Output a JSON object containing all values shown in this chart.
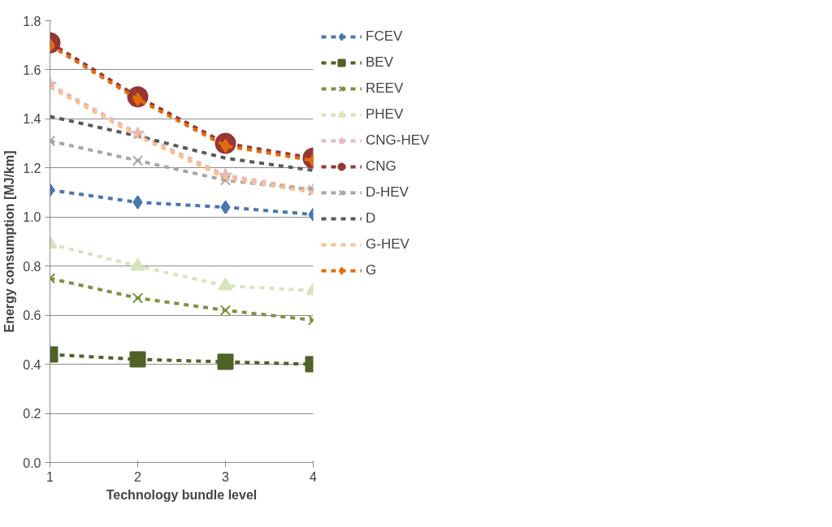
{
  "chart_data": {
    "type": "line",
    "xlabel": "Technology bundle level",
    "ylabel": "Energy consumption [MJ/km]",
    "x": [
      1,
      2,
      3,
      4
    ],
    "xlim": [
      1,
      4
    ],
    "xticks": [
      1,
      2,
      3,
      4
    ],
    "ylim": [
      0,
      1.8
    ],
    "yticks": [
      {
        "value": 0,
        "label": "0.0"
      },
      {
        "value": 0.2,
        "label": "0.2"
      },
      {
        "value": 0.4,
        "label": "0.4"
      },
      {
        "value": 0.6,
        "label": "0.6"
      },
      {
        "value": 0.8,
        "label": "0.8"
      },
      {
        "value": 1.0,
        "label": "1.0"
      },
      {
        "value": 1.2,
        "label": "1.2"
      },
      {
        "value": 1.4,
        "label": "1.4"
      },
      {
        "value": 1.6,
        "label": "1.6"
      },
      {
        "value": 1.8,
        "label": "1.8"
      }
    ],
    "grid": "y",
    "legend": "right",
    "line_style": "dashed",
    "series": [
      {
        "name": "FCEV",
        "color": "#4a76b0",
        "marker": "diamond",
        "values": [
          1.11,
          1.06,
          1.04,
          1.01
        ]
      },
      {
        "name": "BEV",
        "color": "#4f6228",
        "marker": "square",
        "values": [
          0.44,
          0.42,
          0.41,
          0.4
        ]
      },
      {
        "name": "REEV",
        "color": "#77953d",
        "marker": "cross",
        "values": [
          0.75,
          0.67,
          0.62,
          0.58
        ]
      },
      {
        "name": "PHEV",
        "color": "#d7e4bd",
        "marker": "triangle",
        "values": [
          0.89,
          0.8,
          0.72,
          0.7
        ]
      },
      {
        "name": "CNG-HEV",
        "color": "#e6b9b8",
        "marker": "star",
        "values": [
          1.54,
          1.34,
          1.17,
          1.11
        ]
      },
      {
        "name": "CNG",
        "color": "#953735",
        "marker": "circle",
        "values": [
          1.71,
          1.49,
          1.3,
          1.24
        ]
      },
      {
        "name": "D-HEV",
        "color": "#a6a6a6",
        "marker": "cross",
        "values": [
          1.31,
          1.23,
          1.15,
          1.11
        ]
      },
      {
        "name": "D",
        "color": "#595959",
        "marker": "none",
        "values": [
          1.41,
          1.33,
          1.24,
          1.19
        ]
      },
      {
        "name": "G-HEV",
        "color": "#fac090",
        "marker": "none",
        "values": [
          1.53,
          1.33,
          1.16,
          1.1
        ]
      },
      {
        "name": "G",
        "color": "#e46c0a",
        "marker": "diamond",
        "values": [
          1.7,
          1.48,
          1.29,
          1.23
        ]
      }
    ]
  }
}
